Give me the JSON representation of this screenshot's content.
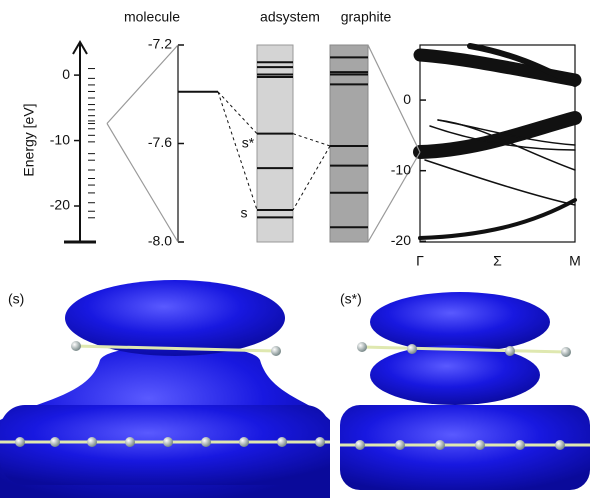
{
  "header": {
    "columns": [
      "molecule",
      "adsystem",
      "graphite"
    ]
  },
  "energy_axis": {
    "label": "Energy [eV]",
    "ylim": [
      -25.5,
      4.6
    ],
    "yticks": [
      0,
      -10,
      -20
    ],
    "levels": [
      1,
      -0.5,
      -1.5,
      -2.5,
      -3.5,
      -4.5,
      -5.3,
      -6.2,
      -7,
      -7.4,
      -8.2,
      -9.2,
      -10.2,
      -12,
      -13,
      -14.5,
      -15.8,
      -16.8,
      -18,
      -19.5,
      -20.8,
      -21.8
    ]
  },
  "zoom": {
    "ylim": [
      -8,
      -7.2
    ],
    "yticks": [
      -7.2,
      -7.6,
      {
        "value": -8,
        "label": "-8.0"
      }
    ],
    "molecule_level": -7.39,
    "adsystem_levels": [
      -7.27,
      -7.29,
      -7.32,
      -7.33,
      -7.56,
      -7.7,
      -7.87,
      -7.9
    ],
    "graphite_levels": [
      -7.25,
      -7.31,
      -7.32,
      -7.36,
      -7.61,
      -7.69,
      -7.8,
      -7.94
    ],
    "state_labels": [
      "s*",
      "s"
    ]
  },
  "bands": {
    "ylim": [
      -20.1,
      7.8
    ],
    "yticks": [
      0,
      -10,
      -20
    ],
    "xticks": [
      "Γ",
      "Σ",
      "M"
    ]
  },
  "images": [
    {
      "label": "(s)"
    },
    {
      "label": "(s*)"
    }
  ]
}
